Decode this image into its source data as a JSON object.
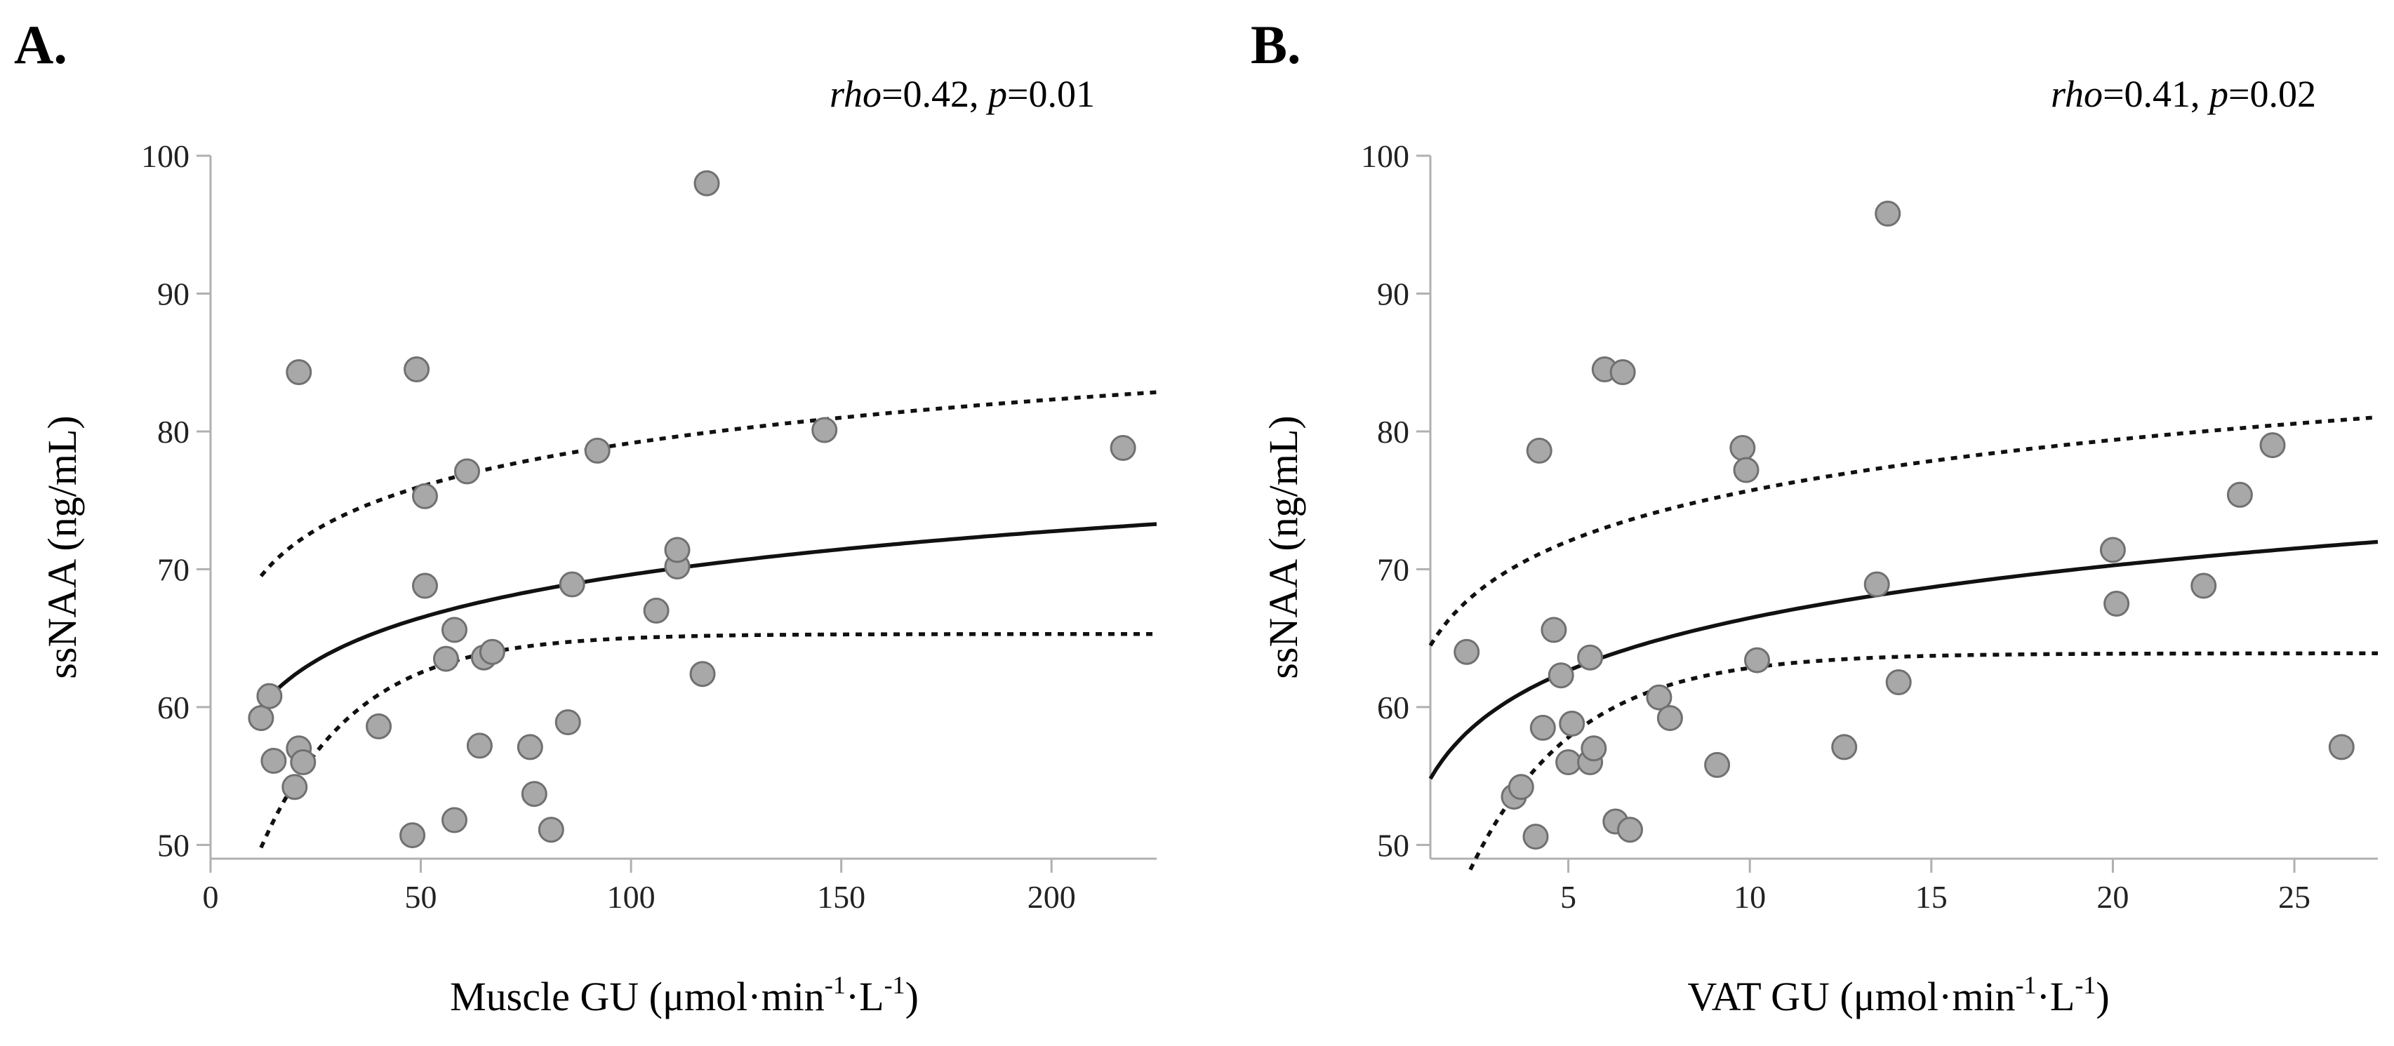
{
  "chart_data": [
    {
      "type": "scatter",
      "panel_label": "A.",
      "stat": {
        "rho_label": "rho",
        "rho_value": "=0.42, ",
        "p_label": "p",
        "p_value": "=0.01"
      },
      "xlabel": {
        "main": "Muscle GU (μmol·min",
        "sup1": "-1",
        "mid": "·L",
        "sup2": "-1",
        "end": ")"
      },
      "ylabel": "ssNAA (ng/mL)",
      "xlim": [
        0,
        225
      ],
      "ylim": [
        49,
        100
      ],
      "xticks": [
        0,
        50,
        100,
        150,
        200
      ],
      "yticks": [
        50,
        60,
        70,
        80,
        90,
        100
      ],
      "points": [
        [
          12,
          59.2
        ],
        [
          14,
          60.8
        ],
        [
          15,
          56.1
        ],
        [
          20,
          54.2
        ],
        [
          21,
          57.0
        ],
        [
          22,
          56.0
        ],
        [
          21,
          84.3
        ],
        [
          40,
          58.6
        ],
        [
          48,
          50.7
        ],
        [
          49,
          84.5
        ],
        [
          51,
          75.3
        ],
        [
          51,
          68.8
        ],
        [
          56,
          63.5
        ],
        [
          58,
          65.6
        ],
        [
          58,
          51.8
        ],
        [
          61,
          77.1
        ],
        [
          64,
          57.2
        ],
        [
          65,
          63.6
        ],
        [
          67,
          64.0
        ],
        [
          76,
          57.1
        ],
        [
          77,
          53.7
        ],
        [
          81,
          51.1
        ],
        [
          85,
          58.9
        ],
        [
          86,
          68.9
        ],
        [
          92,
          78.6
        ],
        [
          106,
          67.0
        ],
        [
          111,
          70.2
        ],
        [
          111,
          71.4
        ],
        [
          117,
          62.4
        ],
        [
          118,
          98.0
        ],
        [
          146,
          80.1
        ],
        [
          217,
          78.8
        ]
      ],
      "fit": {
        "x0": 12,
        "x1": 225,
        "a": 48.8,
        "b": 4.52
      },
      "upper_ci": {
        "x0": 12,
        "x1": 225,
        "a": 58.2,
        "b": 4.55
      },
      "lower_ci": {
        "x0": 12,
        "x1": 225,
        "y_at_x0": 49.8,
        "asymptote": 65.3,
        "rate": 0.045
      }
    },
    {
      "type": "scatter",
      "panel_label": "B.",
      "stat": {
        "rho_label": "rho",
        "rho_value": "=0.41, ",
        "p_label": "p",
        "p_value": "=0.02"
      },
      "xlabel": {
        "main": "VAT GU (μmol·min",
        "sup1": "-1",
        "mid": "·L",
        "sup2": "-1",
        "end": ")"
      },
      "ylabel": "ssNAA (ng/mL)",
      "xlim": [
        1.2,
        27.3
      ],
      "ylim": [
        49,
        100
      ],
      "xticks": [
        5,
        10,
        15,
        20,
        25
      ],
      "yticks": [
        50,
        60,
        70,
        80,
        90,
        100
      ],
      "points": [
        [
          2.2,
          64.0
        ],
        [
          3.5,
          53.5
        ],
        [
          3.7,
          54.2
        ],
        [
          4.1,
          50.6
        ],
        [
          4.2,
          78.6
        ],
        [
          4.3,
          58.5
        ],
        [
          4.6,
          65.6
        ],
        [
          4.8,
          62.3
        ],
        [
          5.0,
          56.0
        ],
        [
          5.1,
          58.8
        ],
        [
          5.6,
          56.0
        ],
        [
          5.6,
          63.6
        ],
        [
          5.7,
          57.0
        ],
        [
          6.0,
          84.5
        ],
        [
          6.3,
          51.7
        ],
        [
          6.5,
          84.3
        ],
        [
          6.7,
          51.1
        ],
        [
          7.5,
          60.7
        ],
        [
          7.8,
          59.2
        ],
        [
          9.1,
          55.8
        ],
        [
          9.8,
          78.8
        ],
        [
          9.9,
          77.2
        ],
        [
          10.2,
          63.4
        ],
        [
          12.6,
          57.1
        ],
        [
          13.5,
          68.9
        ],
        [
          13.8,
          95.8
        ],
        [
          14.1,
          61.8
        ],
        [
          20.0,
          71.4
        ],
        [
          20.1,
          67.5
        ],
        [
          22.5,
          68.8
        ],
        [
          23.5,
          75.4
        ],
        [
          24.4,
          79.0
        ],
        [
          26.3,
          57.1
        ]
      ],
      "fit": {
        "x0": 1.2,
        "x1": 27.3,
        "a": 53.8,
        "b": 5.5
      },
      "upper_ci": {
        "x0": 1.2,
        "x1": 27.3,
        "a": 63.5,
        "b": 5.3
      },
      "lower_ci": {
        "x0": 2.3,
        "x1": 27.3,
        "y_at_x0": 48.2,
        "asymptote": 63.9,
        "rate": 0.35
      }
    }
  ]
}
